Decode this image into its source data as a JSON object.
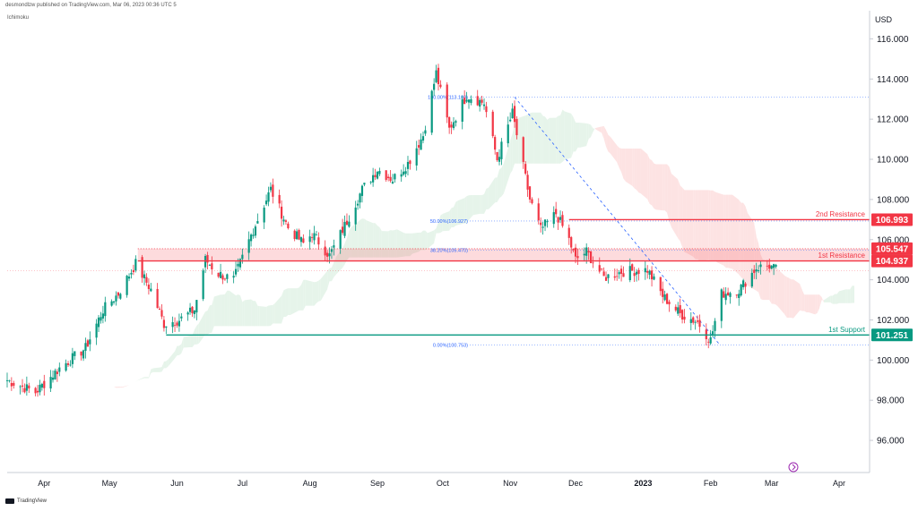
{
  "header": {
    "publisher_line": "desmondlzw published on TradingView.com, Mar 06, 2023 00:36 UTC 5",
    "indicator": "Ichimoku",
    "currency": "USD"
  },
  "footer": {
    "brand": "TradingView"
  },
  "chart_data": {
    "type": "candlestick",
    "ylim": [
      94.4,
      117.4
    ],
    "yticks": [
      {
        "value": 96,
        "label": "96.000"
      },
      {
        "value": 98,
        "label": "98.000"
      },
      {
        "value": 100,
        "label": "100.000"
      },
      {
        "value": 102,
        "label": "102.000"
      },
      {
        "value": 104,
        "label": "104.000"
      },
      {
        "value": 106,
        "label": "106.000"
      },
      {
        "value": 108,
        "label": "108.000"
      },
      {
        "value": 110,
        "label": "110.000"
      },
      {
        "value": 112,
        "label": "112.000"
      },
      {
        "value": 114,
        "label": "114.000"
      },
      {
        "value": 116,
        "label": "116.000"
      }
    ],
    "xrange": [
      "2022-03-15",
      "2023-04-15"
    ],
    "xticks": [
      {
        "date": "2022-04-01",
        "label": "Apr"
      },
      {
        "date": "2022-05-01",
        "label": "May"
      },
      {
        "date": "2022-06-01",
        "label": "Jun"
      },
      {
        "date": "2022-07-01",
        "label": "Jul"
      },
      {
        "date": "2022-08-01",
        "label": "Aug"
      },
      {
        "date": "2022-09-01",
        "label": "Sep"
      },
      {
        "date": "2022-10-01",
        "label": "Oct"
      },
      {
        "date": "2022-11-01",
        "label": "Nov"
      },
      {
        "date": "2022-12-01",
        "label": "Dec"
      },
      {
        "date": "2023-01-01",
        "label": "2023",
        "bold": true
      },
      {
        "date": "2023-02-01",
        "label": "Feb"
      },
      {
        "date": "2023-03-01",
        "label": "Mar"
      },
      {
        "date": "2023-04-01",
        "label": "Apr"
      }
    ],
    "close_path": [
      [
        "2022-03-15",
        99.0
      ],
      [
        "2022-03-28",
        98.4
      ],
      [
        "2022-04-08",
        99.6
      ],
      [
        "2022-04-20",
        100.6
      ],
      [
        "2022-04-28",
        102.5
      ],
      [
        "2022-05-05",
        103.3
      ],
      [
        "2022-05-13",
        104.8
      ],
      [
        "2022-05-20",
        103.5
      ],
      [
        "2022-05-26",
        101.8
      ],
      [
        "2022-06-02",
        102.0
      ],
      [
        "2022-06-09",
        102.5
      ],
      [
        "2022-06-14",
        105.0
      ],
      [
        "2022-06-20",
        104.3
      ],
      [
        "2022-06-27",
        104.0
      ],
      [
        "2022-07-06",
        106.5
      ],
      [
        "2022-07-14",
        108.5
      ],
      [
        "2022-07-22",
        106.6
      ],
      [
        "2022-07-29",
        105.8
      ],
      [
        "2022-08-02",
        106.3
      ],
      [
        "2022-08-10",
        105.2
      ],
      [
        "2022-08-17",
        106.7
      ],
      [
        "2022-08-25",
        108.5
      ],
      [
        "2022-09-01",
        109.5
      ],
      [
        "2022-09-08",
        109.0
      ],
      [
        "2022-09-15",
        109.8
      ],
      [
        "2022-09-22",
        111.2
      ],
      [
        "2022-09-28",
        114.3
      ],
      [
        "2022-10-04",
        111.5
      ],
      [
        "2022-10-12",
        113.2
      ],
      [
        "2022-10-20",
        112.8
      ],
      [
        "2022-10-26",
        110.0
      ],
      [
        "2022-11-02",
        112.3
      ],
      [
        "2022-11-10",
        108.0
      ],
      [
        "2022-11-15",
        106.5
      ],
      [
        "2022-11-22",
        107.3
      ],
      [
        "2022-11-28",
        106.0
      ],
      [
        "2022-12-01",
        105.0
      ],
      [
        "2022-12-06",
        105.4
      ],
      [
        "2022-12-14",
        104.1
      ],
      [
        "2022-12-22",
        104.4
      ],
      [
        "2023-01-03",
        104.5
      ],
      [
        "2023-01-10",
        103.2
      ],
      [
        "2023-01-18",
        102.3
      ],
      [
        "2023-01-26",
        101.9
      ],
      [
        "2023-02-01",
        101.0
      ],
      [
        "2023-02-06",
        103.3
      ],
      [
        "2023-02-14",
        103.5
      ],
      [
        "2023-02-22",
        104.6
      ],
      [
        "2023-02-28",
        104.7
      ],
      [
        "2023-03-03",
        104.5
      ]
    ],
    "horizontal_levels": [
      {
        "name": "2nd Resistance",
        "value": 106.993,
        "label": "106.993",
        "color": "#f23645",
        "from": "2022-11-28"
      },
      {
        "name": "1st Resistance",
        "value": 104.937,
        "label": "104.937",
        "color": "#f23645",
        "from": "2022-05-14",
        "zone_top": 105.547,
        "zone_top_label": "105.547"
      },
      {
        "name": "1st Support",
        "value": 101.251,
        "label": "101.251",
        "color": "#089981",
        "from": "2022-05-27"
      }
    ],
    "fibonacci": [
      {
        "label": "100.00%(113.100)",
        "value": 113.1
      },
      {
        "label": "50.00%(106.927)",
        "value": 106.927
      },
      {
        "label": "38.20%(105.470)",
        "value": 105.47
      },
      {
        "label": "0.00%(100.753)",
        "value": 100.753
      }
    ],
    "fib_trend": {
      "from": [
        "2022-11-03",
        113.1
      ],
      "to": [
        "2023-02-02",
        100.753
      ]
    },
    "colors": {
      "up": "#089981",
      "down": "#f23645",
      "cloud_bull": "#e6f4ea",
      "cloud_bear": "#fde3e3",
      "fib": "#2962ff"
    }
  }
}
